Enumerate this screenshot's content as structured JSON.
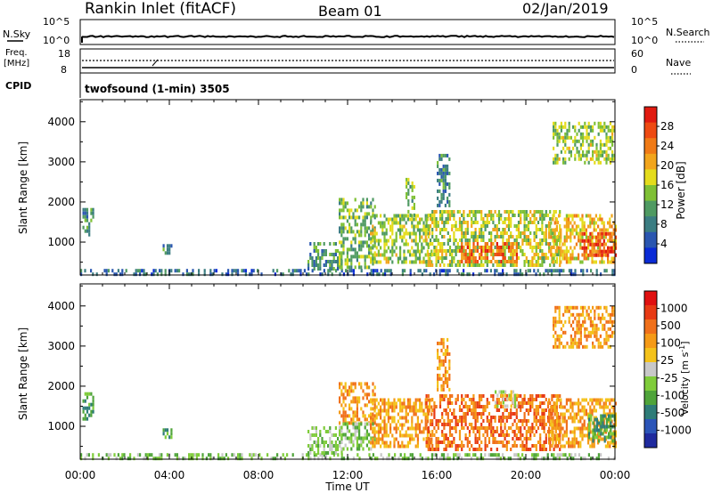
{
  "header": {
    "station": "Rankin Inlet (fitACF)",
    "beam": "Beam 01",
    "date": "02/Jan/2019"
  },
  "strip_panels": {
    "nsky": {
      "label": "N.Sky",
      "ticks": [
        "10^5",
        "10^0"
      ]
    },
    "nsearch": {
      "label": "N.Search",
      "ticks": [
        "10^5",
        "10^0"
      ]
    },
    "freq": {
      "label_top": "Freq.",
      "label_bottom": "[MHz]",
      "ticks": [
        "18",
        "8"
      ]
    },
    "nave": {
      "label": "Nave",
      "ticks": [
        "60",
        "0"
      ]
    },
    "cpid": {
      "label": "CPID",
      "program": "twofsound (1-min) 3505"
    }
  },
  "x_axis": {
    "label": "Time UT",
    "ticks": [
      "00:00",
      "04:00",
      "08:00",
      "12:00",
      "16:00",
      "20:00",
      "00:00"
    ]
  },
  "colors": {
    "power_scale": [
      "#0a2bd6",
      "#2a56b0",
      "#3b7d82",
      "#4f9a62",
      "#7fc035",
      "#e4dc1c",
      "#f2a51c",
      "#f07a16",
      "#ee4a12",
      "#e11a10"
    ],
    "velocity_scale": [
      "#1f2a9e",
      "#2b55b8",
      "#2e7c78",
      "#4fa43a",
      "#7fcc3a",
      "#c8c8c8",
      "#f4c21a",
      "#f59a16",
      "#f0701a",
      "#e83a14",
      "#e01010"
    ]
  },
  "chart_data": [
    {
      "type": "heatmap",
      "title": "Power",
      "xlabel": "Time UT",
      "ylabel": "Slant Range [km]",
      "xlim": [
        0,
        24
      ],
      "ylim": [
        180,
        4550
      ],
      "yticks": [
        "1000",
        "2000",
        "3000",
        "4000"
      ],
      "colorbar": {
        "label": "Power [dB]",
        "range": [
          0,
          32
        ],
        "ticks": [
          "28",
          "24",
          "20",
          "16",
          "12",
          "8",
          "4"
        ]
      },
      "echo_regions": [
        {
          "t0": 0.0,
          "t1": 24.0,
          "r0": 190,
          "r1": 330,
          "level": 6
        },
        {
          "t0": 0.1,
          "t1": 0.6,
          "r0": 1150,
          "r1": 1850,
          "level": 10
        },
        {
          "t0": 3.7,
          "t1": 4.1,
          "r0": 760,
          "r1": 950,
          "level": 8
        },
        {
          "t0": 10.2,
          "t1": 11.7,
          "r0": 350,
          "r1": 1000,
          "level": 9
        },
        {
          "t0": 11.6,
          "t1": 13.2,
          "r0": 400,
          "r1": 2100,
          "level": 13
        },
        {
          "t0": 13.0,
          "t1": 15.8,
          "r0": 500,
          "r1": 1700,
          "level": 15
        },
        {
          "t0": 14.6,
          "t1": 15.0,
          "r0": 1600,
          "r1": 2600,
          "level": 12
        },
        {
          "t0": 16.0,
          "t1": 16.6,
          "r0": 1900,
          "r1": 3200,
          "level": 9
        },
        {
          "t0": 15.5,
          "t1": 21.5,
          "r0": 400,
          "r1": 1800,
          "level": 16
        },
        {
          "t0": 17.0,
          "t1": 19.6,
          "r0": 550,
          "r1": 1000,
          "level": 26
        },
        {
          "t0": 21.0,
          "t1": 24.0,
          "r0": 500,
          "r1": 1700,
          "level": 20
        },
        {
          "t0": 22.5,
          "t1": 24.0,
          "r0": 650,
          "r1": 1250,
          "level": 29
        },
        {
          "t0": 21.2,
          "t1": 24.0,
          "r0": 3000,
          "r1": 4000,
          "level": 15
        }
      ]
    },
    {
      "type": "heatmap",
      "title": "Velocity",
      "xlabel": "Time UT",
      "ylabel": "Slant Range [km]",
      "xlim": [
        0,
        24
      ],
      "ylim": [
        180,
        4550
      ],
      "yticks": [
        "1000",
        "2000",
        "3000",
        "4000"
      ],
      "colorbar": {
        "label": "Velocity [m s^-1]",
        "ticks": [
          "1000",
          "500",
          "100",
          "25",
          "-25",
          "-100",
          "-500",
          "-1000"
        ]
      },
      "echo_regions": [
        {
          "t0": 0.0,
          "t1": 24.0,
          "r0": 190,
          "r1": 330,
          "level": 4
        },
        {
          "t0": 0.1,
          "t1": 0.6,
          "r0": 1150,
          "r1": 1850,
          "level": 3
        },
        {
          "t0": 3.7,
          "t1": 4.1,
          "r0": 760,
          "r1": 950,
          "level": 3
        },
        {
          "t0": 10.2,
          "t1": 11.7,
          "r0": 350,
          "r1": 1000,
          "level": 4
        },
        {
          "t0": 11.6,
          "t1": 13.2,
          "r0": 1100,
          "r1": 2100,
          "level": 7
        },
        {
          "t0": 11.6,
          "t1": 13.2,
          "r0": 400,
          "r1": 1100,
          "level": 4
        },
        {
          "t0": 13.0,
          "t1": 15.8,
          "r0": 500,
          "r1": 1700,
          "level": 7
        },
        {
          "t0": 16.0,
          "t1": 16.6,
          "r0": 1900,
          "r1": 3200,
          "level": 7
        },
        {
          "t0": 15.5,
          "t1": 21.5,
          "r0": 400,
          "r1": 1800,
          "level": 8
        },
        {
          "t0": 18.6,
          "t1": 19.6,
          "r0": 1500,
          "r1": 1900,
          "level": 5
        },
        {
          "t0": 21.0,
          "t1": 24.0,
          "r0": 500,
          "r1": 1700,
          "level": 7
        },
        {
          "t0": 22.8,
          "t1": 24.0,
          "r0": 600,
          "r1": 1300,
          "level": 3
        },
        {
          "t0": 21.2,
          "t1": 24.0,
          "r0": 3000,
          "r1": 4000,
          "level": 7
        }
      ]
    }
  ]
}
